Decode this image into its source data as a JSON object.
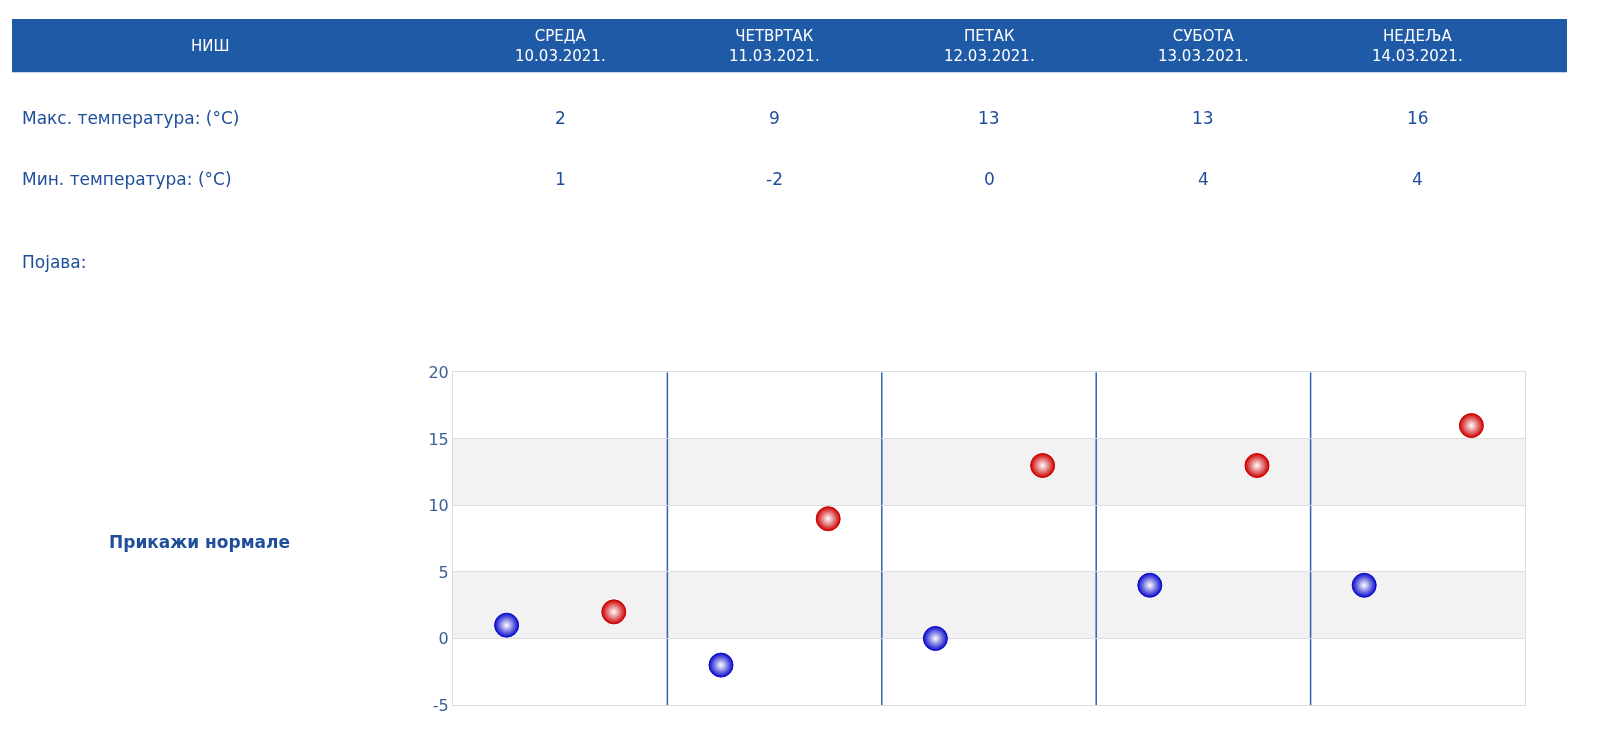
{
  "chart_data": {
    "type": "scatter",
    "title": "НИШ",
    "categories": [
      null,
      null,
      null,
      null,
      null
    ],
    "series": [
      {
        "color": "#cc0000",
        "values": [
          2,
          9,
          13,
          13,
          16
        ]
      },
      {
        "color": "#0a0acc",
        "values": [
          1,
          -2,
          0,
          4,
          4
        ]
      }
    ],
    "data_labels": true,
    "annotations": [
      "СРЕДА\n10.03.2021.",
      "ЧЕТВРТАК\n11.03.2021.",
      "ПЕТАК\n12.03.2021.",
      "СУБОТА\n13.03.2021.",
      "НЕДЕЉА\n14.03.2021.",
      "Макс. температура: (°C)",
      "Мин. температура: (°C)",
      "Појава:",
      "Прикажи нормале"
    ],
    "ylim": [
      -5,
      20
    ],
    "yticks": [
      -5,
      0,
      5,
      10,
      15,
      20
    ],
    "bands": [
      {
        "axis": "y",
        "from": 0,
        "to": 5,
        "color": "#f2f2f2"
      },
      {
        "axis": "y",
        "from": 10,
        "to": 15,
        "color": "#f2f2f2"
      }
    ],
    "grid": true,
    "marker": "circle",
    "tick_labels": "y",
    "legend": false
  }
}
